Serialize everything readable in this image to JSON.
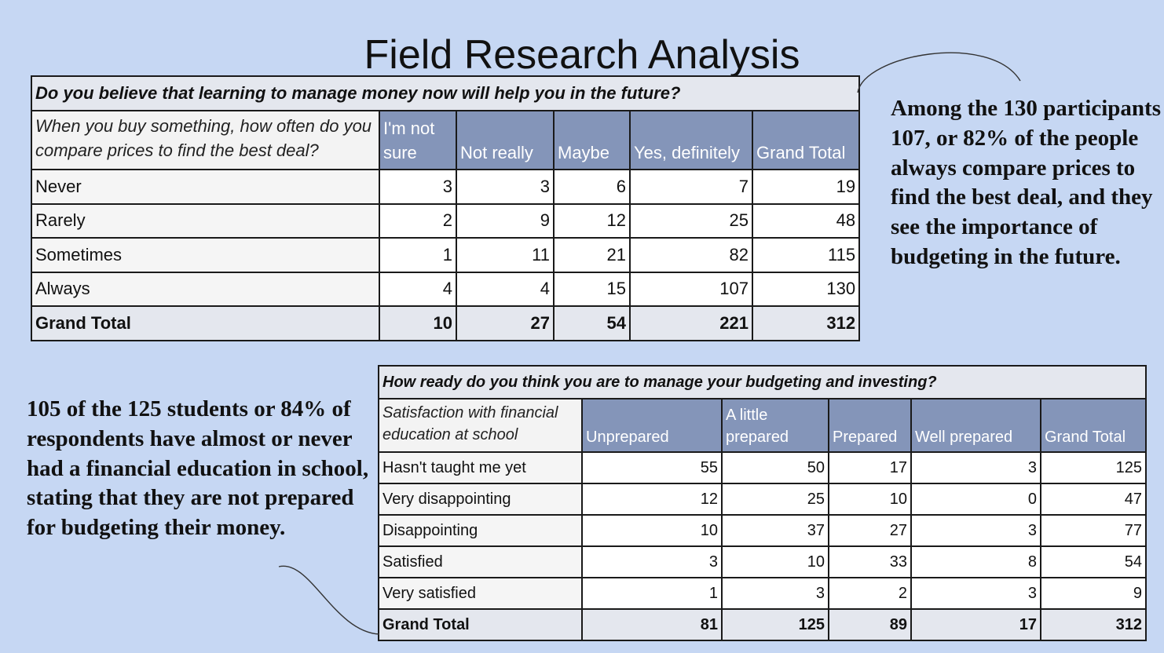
{
  "title": "Field Research Analysis",
  "table1": {
    "question": "Do you believe that learning to manage money now will help you in the future?",
    "row_question": "When you buy something, how often do you compare prices to find the best deal?",
    "columns": [
      "I'm not sure",
      "Not really",
      "Maybe",
      "Yes, definitely",
      "Grand Total"
    ],
    "rows": [
      {
        "label": "Never",
        "values": [
          "3",
          "3",
          "6",
          "7",
          "19"
        ]
      },
      {
        "label": "Rarely",
        "values": [
          "2",
          "9",
          "12",
          "25",
          "48"
        ]
      },
      {
        "label": "Sometimes",
        "values": [
          "1",
          "11",
          "21",
          "82",
          "115"
        ]
      },
      {
        "label": "Always",
        "values": [
          "4",
          "4",
          "15",
          "107",
          "130"
        ]
      }
    ],
    "total": {
      "label": "Grand Total",
      "values": [
        "10",
        "27",
        "54",
        "221",
        "312"
      ]
    }
  },
  "table2": {
    "question": "How ready do you think you are to manage your budgeting and investing?",
    "row_question": "Satisfaction with financial education at school",
    "columns": [
      "Unprepared",
      "A little prepared",
      "Prepared",
      "Well prepared",
      "Grand Total"
    ],
    "rows": [
      {
        "label": "Hasn't taught me yet",
        "values": [
          "55",
          "50",
          "17",
          "3",
          "125"
        ]
      },
      {
        "label": "Very disappointing",
        "values": [
          "12",
          "25",
          "10",
          "0",
          "47"
        ]
      },
      {
        "label": "Disappointing",
        "values": [
          "10",
          "37",
          "27",
          "3",
          "77"
        ]
      },
      {
        "label": "Satisfied",
        "values": [
          "3",
          "10",
          "33",
          "8",
          "54"
        ]
      },
      {
        "label": "Very satisfied",
        "values": [
          "1",
          "3",
          "2",
          "3",
          "9"
        ]
      }
    ],
    "total": {
      "label": "Grand Total",
      "values": [
        "81",
        "125",
        "89",
        "17",
        "312"
      ]
    }
  },
  "note1": "Among the 130 participants 107, or 82% of the people always compare prices to find the best deal, and they see the importance of budgeting in the future.",
  "note2": "105 of the 125 students or 84% of respondents have almost or never had a financial education in school, stating that they are not prepared for budgeting their money.",
  "colors": {
    "background": "#c6d7f3",
    "header": "#8495b9",
    "question_band": "#e4e7ee"
  },
  "chart_data": [
    {
      "type": "table",
      "title": "Do you believe that learning to manage money now will help you in the future?",
      "row_header": "When you buy something, how often do you compare prices to find the best deal?",
      "columns": [
        "I'm not sure",
        "Not really",
        "Maybe",
        "Yes, definitely",
        "Grand Total"
      ],
      "rows": [
        "Never",
        "Rarely",
        "Sometimes",
        "Always",
        "Grand Total"
      ],
      "values": [
        [
          3,
          3,
          6,
          7,
          19
        ],
        [
          2,
          9,
          12,
          25,
          48
        ],
        [
          1,
          11,
          21,
          82,
          115
        ],
        [
          4,
          4,
          15,
          107,
          130
        ],
        [
          10,
          27,
          54,
          221,
          312
        ]
      ]
    },
    {
      "type": "table",
      "title": "How ready do you think you are to manage your budgeting and investing?",
      "row_header": "Satisfaction with financial education at school",
      "columns": [
        "Unprepared",
        "A little prepared",
        "Prepared",
        "Well prepared",
        "Grand Total"
      ],
      "rows": [
        "Hasn't taught me yet",
        "Very disappointing",
        "Disappointing",
        "Satisfied",
        "Very satisfied",
        "Grand Total"
      ],
      "values": [
        [
          55,
          50,
          17,
          3,
          125
        ],
        [
          12,
          25,
          10,
          0,
          47
        ],
        [
          10,
          37,
          27,
          3,
          77
        ],
        [
          3,
          10,
          33,
          8,
          54
        ],
        [
          1,
          3,
          2,
          3,
          9
        ],
        [
          81,
          125,
          89,
          17,
          312
        ]
      ]
    }
  ]
}
